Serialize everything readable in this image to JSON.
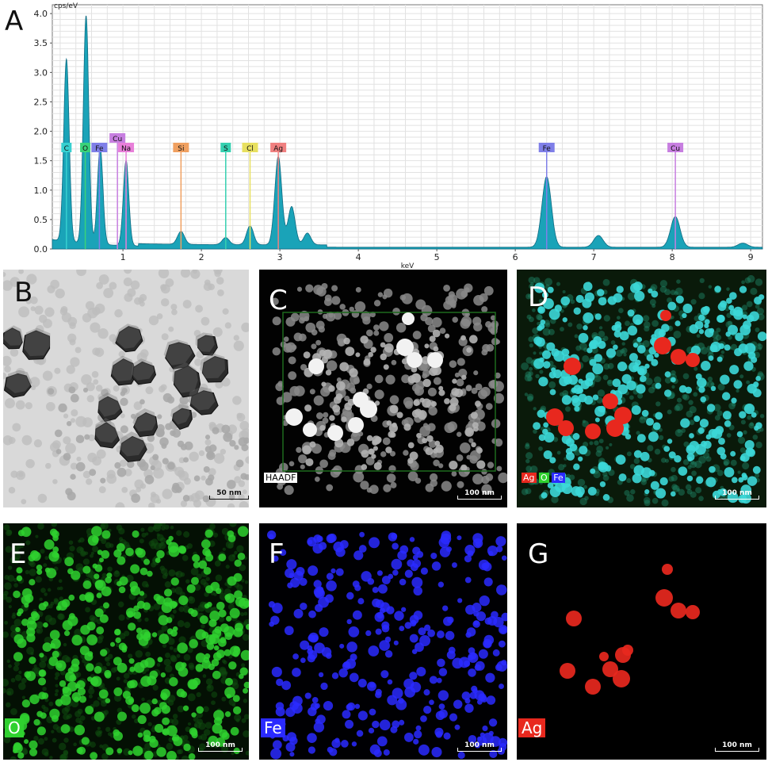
{
  "chart_data": {
    "type": "line",
    "title": "",
    "xlabel": "keV",
    "ylabel": "cps/eV",
    "xlim": [
      0.1,
      9.15
    ],
    "ylim": [
      0,
      4.15
    ],
    "x_ticks": [
      1,
      2,
      3,
      4,
      5,
      6,
      7,
      8,
      9
    ],
    "y_ticks": [
      0.0,
      0.5,
      1.0,
      1.5,
      2.0,
      2.5,
      3.0,
      3.5,
      4.0
    ],
    "y_tick_labels": [
      "0.0",
      "0.5",
      "1.0",
      "1.5",
      "2.0",
      "2.5",
      "3.0",
      "3.5",
      "4.0"
    ],
    "grid": true,
    "fill_color": "#1aa3b8",
    "line_color": "#0f6b82",
    "series": [
      {
        "peaks": [
          {
            "x": 0.28,
            "y": 3.1
          },
          {
            "x": 0.53,
            "y": 3.87
          },
          {
            "x": 0.71,
            "y": 1.65
          },
          {
            "x": 1.04,
            "y": 1.45
          },
          {
            "x": 1.74,
            "y": 0.22
          },
          {
            "x": 2.31,
            "y": 0.12
          },
          {
            "x": 2.62,
            "y": 0.32
          },
          {
            "x": 2.98,
            "y": 1.5
          },
          {
            "x": 3.15,
            "y": 0.65
          },
          {
            "x": 3.35,
            "y": 0.2
          },
          {
            "x": 6.4,
            "y": 1.2
          },
          {
            "x": 7.06,
            "y": 0.2
          },
          {
            "x": 8.04,
            "y": 0.52
          },
          {
            "x": 8.9,
            "y": 0.07
          }
        ]
      }
    ],
    "element_markers": [
      {
        "label": "C",
        "x": 0.28,
        "color": "#37d0d0"
      },
      {
        "label": "O",
        "x": 0.52,
        "color": "#3ad27a"
      },
      {
        "label": "Fe",
        "x": 0.7,
        "color": "#7f7fe8"
      },
      {
        "label": "Cu",
        "x": 0.93,
        "color": "#c77ee0"
      },
      {
        "label": "Na",
        "x": 1.04,
        "color": "#e87fd9"
      },
      {
        "label": "Si",
        "x": 1.74,
        "color": "#f0a060"
      },
      {
        "label": "S",
        "x": 2.31,
        "color": "#35d0b0"
      },
      {
        "label": "Cl",
        "x": 2.62,
        "color": "#e8e060"
      },
      {
        "label": "Ag",
        "x": 2.98,
        "color": "#f08080"
      },
      {
        "label": "Fe",
        "x": 6.4,
        "color": "#7f7fe8"
      },
      {
        "label": "Cu",
        "x": 8.04,
        "color": "#c77ee0"
      }
    ]
  },
  "panels": {
    "a": {
      "letter": "A"
    },
    "b": {
      "letter": "B",
      "scale": "50 nm"
    },
    "c": {
      "letter": "C",
      "scale": "100 nm",
      "tag": "HAADF"
    },
    "d": {
      "letter": "D",
      "scale": "100 nm",
      "legend": [
        "Ag",
        "O",
        "Fe"
      ]
    },
    "e": {
      "letter": "E",
      "scale": "100 nm",
      "label": "O"
    },
    "f": {
      "letter": "F",
      "scale": "100 nm",
      "label": "Fe"
    },
    "g": {
      "letter": "G",
      "scale": "100 nm",
      "label": "Ag"
    }
  },
  "colors": {
    "ag": "#e8281e",
    "o": "#2fd12f",
    "fe": "#2a2aff",
    "cyan": "#3cd8d8"
  }
}
